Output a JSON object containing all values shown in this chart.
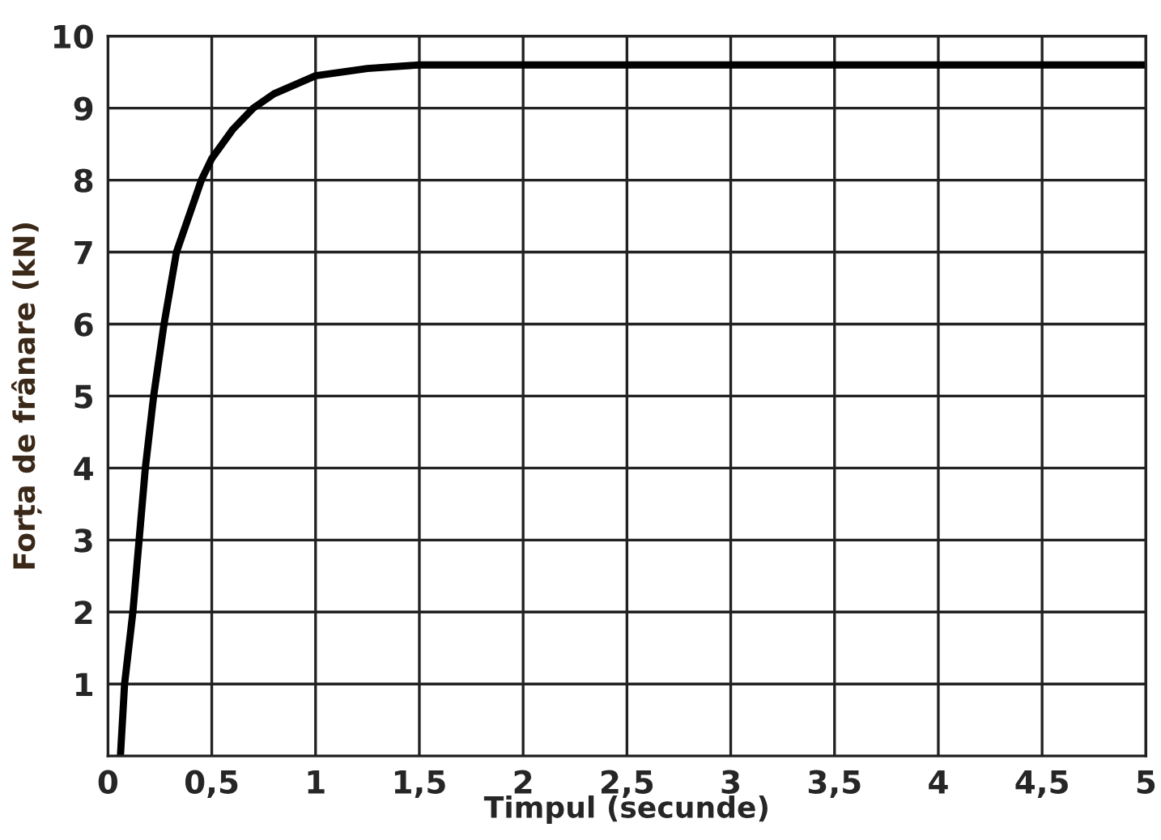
{
  "chart_data": {
    "type": "line",
    "xlabel": "Timpul (secunde)",
    "ylabel": "Forța de frânare (kN)",
    "x": [
      0.06,
      0.08,
      0.12,
      0.15,
      0.18,
      0.22,
      0.27,
      0.33,
      0.45,
      0.5,
      0.6,
      0.7,
      0.8,
      1,
      1.25,
      1.5,
      5
    ],
    "series": [
      {
        "color": "#000000",
        "values": [
          0,
          1,
          2,
          3,
          4,
          5,
          6,
          7,
          8,
          8.3,
          8.7,
          9,
          9.2,
          9.45,
          9.55,
          9.6,
          9.6
        ]
      }
    ],
    "xlim": [
      0,
      5
    ],
    "ylim": [
      0,
      10
    ],
    "xticks": [
      0,
      {
        "value": 0.5,
        "label": "0,5"
      },
      1,
      {
        "value": 1.5,
        "label": "1,5"
      },
      2,
      {
        "value": 2.5,
        "label": "2,5"
      },
      3,
      {
        "value": 3.5,
        "label": "3,5"
      },
      4,
      {
        "value": 4.5,
        "label": "4,5"
      },
      5
    ],
    "yticks": [
      1,
      2,
      3,
      4,
      5,
      6,
      7,
      8,
      9,
      10
    ],
    "grid": true,
    "marker": "none",
    "line_style": "solid",
    "legend": false
  }
}
